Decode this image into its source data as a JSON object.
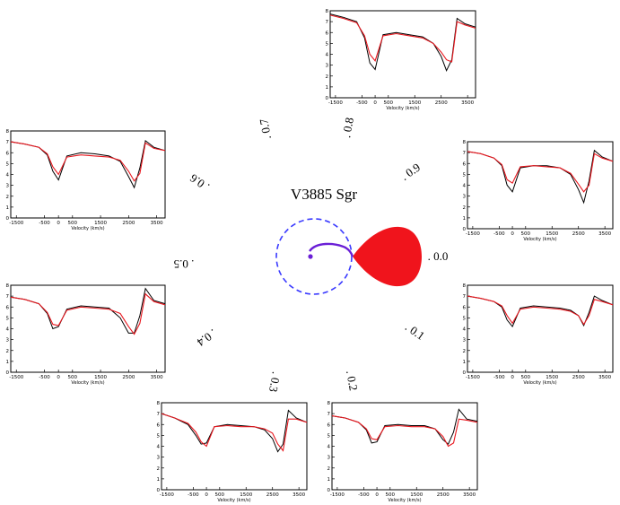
{
  "title": "V3885 Sgr",
  "colors": {
    "observed": "#000000",
    "model": "#e8171e",
    "secondary_star": "#f0141c",
    "disk_outline": "#3a3aff",
    "stream": "#6a1fd6"
  },
  "axis_x_label": "Velocity (km/s)",
  "x_ticks": [
    "-1500",
    "-500",
    "0",
    "500",
    "1500",
    "2500",
    "3500"
  ],
  "y_ticks": [
    "0",
    "1",
    "2",
    "3",
    "4",
    "5",
    "6",
    "7",
    "8"
  ],
  "chart_data": [
    {
      "type": "line",
      "phase": "0.0",
      "phase_label": ". 0.0",
      "xlabel": "Velocity (km/s)",
      "xlim": [
        -1700,
        3800
      ],
      "ylim": [
        0,
        8
      ],
      "series": [
        {
          "name": "",
          "role": "observed",
          "x": [
            -1700,
            -1200,
            -700,
            -400,
            -200,
            0,
            300,
            800,
            1300,
            1800,
            2200,
            2500,
            2700,
            2900,
            3100,
            3400,
            3800
          ],
          "y": [
            7.0,
            6.8,
            6.5,
            6.0,
            4.8,
            4.2,
            5.9,
            6.1,
            6.0,
            5.9,
            5.7,
            5.2,
            4.3,
            5.5,
            7.0,
            6.6,
            6.2
          ]
        },
        {
          "name": "",
          "role": "model",
          "x": [
            -1700,
            -1200,
            -700,
            -400,
            -200,
            0,
            300,
            800,
            1300,
            1800,
            2200,
            2500,
            2700,
            2900,
            3100,
            3400,
            3800
          ],
          "y": [
            7.0,
            6.8,
            6.5,
            6.1,
            5.2,
            4.5,
            5.8,
            6.0,
            5.9,
            5.8,
            5.6,
            5.2,
            4.4,
            5.2,
            6.7,
            6.5,
            6.2
          ]
        }
      ]
    },
    {
      "type": "line",
      "phase": "0.1",
      "phase_label": ". 0.1",
      "xlabel": "Velocity (km/s)",
      "xlim": [
        -1700,
        3800
      ],
      "ylim": [
        0,
        8
      ],
      "series": [
        {
          "name": "",
          "role": "observed",
          "x": [
            -1700,
            -1200,
            -700,
            -400,
            -200,
            0,
            300,
            800,
            1300,
            1800,
            2200,
            2500,
            2700,
            2900,
            3100,
            3400,
            3800
          ],
          "y": [
            7.0,
            6.9,
            6.5,
            5.8,
            4.8,
            4.3,
            5.9,
            6.1,
            6.0,
            6.0,
            5.8,
            5.3,
            4.5,
            5.5,
            7.3,
            6.6,
            6.3
          ]
        },
        {
          "name": "",
          "role": "model",
          "x": [
            -1700,
            -1200,
            -700,
            -400,
            -200,
            0,
            300,
            800,
            1300,
            1800,
            2200,
            2500,
            2700,
            2900,
            3100,
            3400,
            3800
          ],
          "y": [
            7.0,
            6.8,
            6.5,
            5.9,
            5.1,
            4.7,
            5.8,
            6.0,
            5.9,
            5.9,
            5.7,
            5.4,
            4.9,
            5.0,
            6.8,
            6.5,
            6.2
          ]
        }
      ]
    },
    {
      "type": "line",
      "phase": "0.2",
      "phase_label": ". 0.2",
      "xlabel": "Velocity (km/s)",
      "xlim": [
        -1700,
        3800
      ],
      "ylim": [
        0,
        8
      ],
      "series": [
        {
          "name": "",
          "role": "observed",
          "x": [
            -1700,
            -1200,
            -700,
            -400,
            -200,
            0,
            300,
            800,
            1300,
            1800,
            2200,
            2500,
            2700,
            2900,
            3100,
            3400,
            3800
          ],
          "y": [
            6.8,
            6.6,
            6.2,
            5.5,
            4.3,
            4.4,
            5.9,
            6.0,
            5.9,
            5.9,
            5.6,
            4.6,
            4.2,
            5.3,
            7.4,
            6.5,
            6.3
          ]
        },
        {
          "name": "",
          "role": "model",
          "x": [
            -1700,
            -1200,
            -700,
            -400,
            -200,
            0,
            300,
            800,
            1300,
            1800,
            2200,
            2500,
            2700,
            2900,
            3100,
            3400,
            3800
          ],
          "y": [
            6.8,
            6.6,
            6.2,
            5.6,
            4.7,
            4.6,
            5.8,
            5.9,
            5.8,
            5.8,
            5.6,
            4.9,
            4.0,
            4.3,
            6.5,
            6.4,
            6.2
          ]
        }
      ]
    },
    {
      "type": "line",
      "phase": "0.3",
      "phase_label": ". 0.3",
      "xlabel": "Velocity (km/s)",
      "xlim": [
        -1700,
        3800
      ],
      "ylim": [
        0,
        8
      ],
      "series": [
        {
          "name": "",
          "role": "observed",
          "x": [
            -1700,
            -1200,
            -700,
            -400,
            -200,
            0,
            300,
            800,
            1300,
            1800,
            2200,
            2500,
            2700,
            2900,
            3100,
            3400,
            3800
          ],
          "y": [
            7.0,
            6.6,
            6.0,
            5.0,
            4.2,
            4.3,
            5.8,
            6.0,
            5.9,
            5.8,
            5.5,
            4.7,
            3.5,
            4.2,
            7.3,
            6.6,
            6.2
          ]
        },
        {
          "name": "",
          "role": "model",
          "x": [
            -1700,
            -1200,
            -700,
            -400,
            -200,
            0,
            300,
            800,
            1300,
            1800,
            2200,
            2500,
            2700,
            2900,
            3100,
            3400,
            3800
          ],
          "y": [
            7.0,
            6.6,
            6.1,
            5.3,
            4.4,
            4.0,
            5.8,
            5.9,
            5.8,
            5.8,
            5.6,
            5.2,
            4.2,
            3.6,
            6.5,
            6.5,
            6.2
          ]
        }
      ]
    },
    {
      "type": "line",
      "phase": "0.4",
      "phase_label": ". 0.4",
      "xlabel": "Velocity (km/s)",
      "xlim": [
        -1700,
        3800
      ],
      "ylim": [
        0,
        8
      ],
      "series": [
        {
          "name": "",
          "role": "observed",
          "x": [
            -1700,
            -1200,
            -700,
            -400,
            -200,
            0,
            300,
            800,
            1300,
            1800,
            2200,
            2500,
            2700,
            2900,
            3100,
            3400,
            3800
          ],
          "y": [
            6.9,
            6.7,
            6.3,
            5.4,
            4.0,
            4.2,
            5.8,
            6.1,
            6.0,
            5.9,
            5.0,
            3.6,
            3.6,
            5.2,
            7.7,
            6.6,
            6.3
          ]
        },
        {
          "name": "",
          "role": "model",
          "x": [
            -1700,
            -1200,
            -700,
            -400,
            -200,
            0,
            300,
            800,
            1300,
            1800,
            2200,
            2500,
            2700,
            2900,
            3100,
            3400,
            3800
          ],
          "y": [
            6.9,
            6.7,
            6.3,
            5.5,
            4.4,
            4.3,
            5.7,
            6.0,
            5.9,
            5.8,
            5.4,
            4.2,
            3.5,
            4.5,
            7.2,
            6.5,
            6.2
          ]
        }
      ]
    },
    {
      "type": "line",
      "phase": "0.5",
      "phase_label": ". 0.5",
      "xlabel": "Velocity (km/s)",
      "xlim": [
        -1700,
        3800
      ],
      "ylim": [
        0,
        8
      ],
      "series": [
        {
          "name": "",
          "role": "observed",
          "x": [
            -1700,
            -1200,
            -700,
            -400,
            -200,
            0,
            300,
            800,
            1300,
            1800,
            2200,
            2500,
            2700,
            2900,
            3100,
            3400,
            3800
          ],
          "y": [
            7.0,
            6.8,
            6.5,
            5.6,
            4.4,
            4.6,
            6.0,
            6.2,
            6.1,
            6.0,
            5.5,
            4.0,
            3.3,
            4.6,
            7.6,
            6.7,
            6.3
          ]
        },
        {
          "name": "",
          "role": "model",
          "x": [
            -1700,
            -1200,
            -700,
            -400,
            -200,
            0,
            300,
            800,
            1300,
            1800,
            2200,
            2500,
            2700,
            2900,
            3100,
            3400,
            3800
          ],
          "y": [
            7.0,
            6.8,
            6.5,
            5.6,
            4.6,
            4.7,
            5.8,
            6.0,
            5.9,
            5.8,
            5.6,
            4.6,
            3.6,
            4.0,
            7.2,
            6.6,
            6.2
          ]
        }
      ]
    },
    {
      "type": "line",
      "phase": "0.6",
      "phase_label": ". 0.6",
      "xlabel": "Velocity (km/s)",
      "xlim": [
        -1700,
        3800
      ],
      "ylim": [
        0,
        8
      ],
      "series": [
        {
          "name": "",
          "role": "observed",
          "x": [
            -1700,
            -1200,
            -700,
            -400,
            -200,
            0,
            300,
            800,
            1300,
            1800,
            2200,
            2500,
            2700,
            2900,
            3100,
            3400,
            3800
          ],
          "y": [
            7.0,
            6.8,
            6.5,
            5.8,
            4.3,
            3.5,
            5.7,
            6.0,
            5.9,
            5.7,
            5.2,
            3.8,
            2.8,
            4.6,
            7.1,
            6.5,
            6.2
          ]
        },
        {
          "name": "",
          "role": "model",
          "x": [
            -1700,
            -1200,
            -700,
            -400,
            -200,
            0,
            300,
            800,
            1300,
            1800,
            2200,
            2500,
            2700,
            2900,
            3100,
            3400,
            3800
          ],
          "y": [
            7.0,
            6.8,
            6.5,
            5.9,
            4.7,
            4.0,
            5.6,
            5.8,
            5.7,
            5.6,
            5.3,
            4.3,
            3.4,
            4.1,
            6.9,
            6.4,
            6.2
          ]
        }
      ]
    },
    {
      "type": "line",
      "phase": "0.8",
      "phase_label": ". 0.8",
      "xlabel": "Velocity (km/s)",
      "xlim": [
        -1700,
        3800
      ],
      "ylim": [
        0,
        8
      ],
      "series": [
        {
          "name": "",
          "role": "observed",
          "x": [
            -1700,
            -1200,
            -700,
            -400,
            -200,
            0,
            300,
            800,
            1300,
            1800,
            2200,
            2500,
            2700,
            2900,
            3100,
            3400,
            3800
          ],
          "y": [
            7.7,
            7.4,
            7.0,
            5.5,
            3.2,
            2.6,
            5.8,
            6.0,
            5.8,
            5.6,
            5.0,
            3.8,
            2.5,
            3.5,
            7.3,
            6.8,
            6.5
          ]
        },
        {
          "name": "",
          "role": "model",
          "x": [
            -1700,
            -1200,
            -700,
            -400,
            -200,
            0,
            300,
            800,
            1300,
            1800,
            2200,
            2500,
            2700,
            2900,
            3100,
            3400,
            3800
          ],
          "y": [
            7.6,
            7.3,
            6.9,
            5.7,
            4.0,
            3.4,
            5.7,
            5.9,
            5.7,
            5.5,
            5.0,
            4.2,
            3.5,
            3.3,
            7.0,
            6.7,
            6.4
          ]
        }
      ]
    },
    {
      "type": "line",
      "phase": "0.9",
      "phase_label": ". 0.9",
      "xlabel": "Velocity (km/s)",
      "xlim": [
        -1700,
        3800
      ],
      "ylim": [
        0,
        8
      ],
      "series": [
        {
          "name": "",
          "role": "observed",
          "x": [
            -1700,
            -1200,
            -700,
            -400,
            -200,
            0,
            300,
            800,
            1300,
            1800,
            2200,
            2500,
            2700,
            2900,
            3100,
            3400,
            3800
          ],
          "y": [
            7.1,
            6.9,
            6.5,
            5.8,
            4.0,
            3.4,
            5.6,
            5.8,
            5.8,
            5.6,
            5.0,
            3.6,
            2.4,
            4.4,
            7.2,
            6.6,
            6.2
          ]
        },
        {
          "name": "",
          "role": "model",
          "x": [
            -1700,
            -1200,
            -700,
            -400,
            -200,
            0,
            300,
            800,
            1300,
            1800,
            2200,
            2500,
            2700,
            2900,
            3100,
            3400,
            3800
          ],
          "y": [
            7.1,
            6.9,
            6.5,
            5.9,
            4.5,
            4.2,
            5.7,
            5.8,
            5.7,
            5.6,
            5.1,
            4.1,
            3.4,
            4.0,
            6.9,
            6.5,
            6.2
          ]
        }
      ]
    }
  ]
}
